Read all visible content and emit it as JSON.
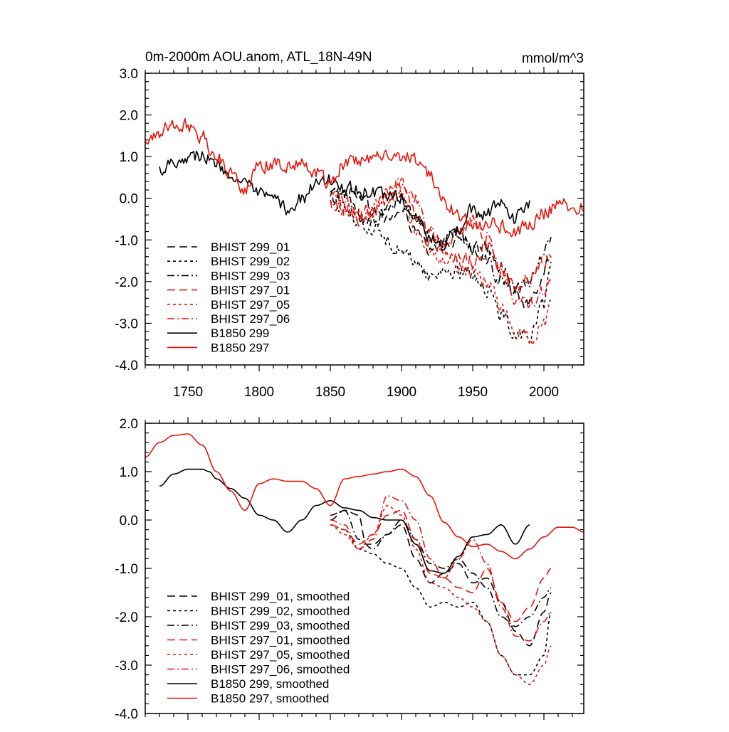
{
  "chart_data": [
    {
      "type": "line",
      "title": "0m-2000m AOU.anom, ATL_18N-49N",
      "units": "mmol/m^3",
      "xlim": [
        1720,
        2028
      ],
      "ylim": [
        -4.0,
        3.0
      ],
      "x_ticks": [
        1750,
        1800,
        1850,
        1900,
        1950,
        2000
      ],
      "x_tick_labels": [
        "1750",
        "1800",
        "1850",
        "1900",
        "1950",
        "2000"
      ],
      "y_ticks": [
        3.0,
        2.0,
        1.0,
        0.0,
        -1.0,
        -2.0,
        -3.0,
        -4.0
      ],
      "y_tick_labels": [
        "3.0",
        "2.0",
        "1.0",
        "0.0",
        "-1.0",
        "-2.0",
        "-3.0",
        "-4.0"
      ],
      "legend_position": "bottom-left",
      "series": [
        {
          "name": "BHIST 299_01",
          "color": "#000000",
          "dash": "long-dash",
          "noise": 0.16,
          "x": [
            1850,
            1860,
            1870,
            1880,
            1890,
            1900,
            1910,
            1920,
            1930,
            1940,
            1950,
            1960,
            1970,
            1980,
            1990,
            2000,
            2005
          ],
          "y": [
            0.0,
            0.2,
            0.1,
            -0.3,
            -0.5,
            -0.3,
            -0.8,
            -1.3,
            -1.1,
            -0.9,
            -1.2,
            -1.2,
            -1.6,
            -2.3,
            -2.6,
            -1.8,
            -1.3
          ]
        },
        {
          "name": "BHIST 299_02",
          "color": "#000000",
          "dash": "short-dash",
          "noise": 0.16,
          "x": [
            1850,
            1860,
            1870,
            1880,
            1890,
            1900,
            1910,
            1920,
            1930,
            1940,
            1950,
            1960,
            1970,
            1980,
            1990,
            2000,
            2005
          ],
          "y": [
            -0.1,
            -0.2,
            -0.6,
            -0.7,
            -1.0,
            -1.3,
            -1.5,
            -1.9,
            -1.7,
            -1.8,
            -1.8,
            -2.2,
            -2.8,
            -3.2,
            -3.3,
            -2.6,
            -1.7
          ]
        },
        {
          "name": "BHIST 299_03",
          "color": "#000000",
          "dash": "dash-dot",
          "noise": 0.16,
          "x": [
            1850,
            1860,
            1870,
            1880,
            1890,
            1900,
            1910,
            1920,
            1930,
            1940,
            1950,
            1960,
            1970,
            1980,
            1990,
            2000,
            2005
          ],
          "y": [
            0.1,
            0.1,
            -0.4,
            -0.6,
            -0.3,
            0.0,
            -0.4,
            -0.9,
            -1.0,
            -0.9,
            -1.2,
            -1.5,
            -2.0,
            -2.2,
            -2.0,
            -1.4,
            -0.9
          ]
        },
        {
          "name": "BHIST 297_01",
          "color": "#e8140c",
          "dash": "long-dash",
          "noise": 0.16,
          "x": [
            1850,
            1860,
            1870,
            1880,
            1890,
            1900,
            1910,
            1920,
            1930,
            1940,
            1950,
            1960,
            1970,
            1980,
            1990,
            2000,
            2005
          ],
          "y": [
            -0.1,
            -0.2,
            -0.4,
            -0.3,
            0.0,
            0.3,
            -0.4,
            -1.1,
            -1.3,
            -1.4,
            -1.5,
            -1.1,
            -1.7,
            -2.1,
            -1.9,
            -1.5,
            -1.3
          ]
        },
        {
          "name": "BHIST 297_05",
          "color": "#e8140c",
          "dash": "short-dash",
          "noise": 0.16,
          "x": [
            1850,
            1860,
            1870,
            1880,
            1890,
            1900,
            1910,
            1920,
            1930,
            1940,
            1950,
            1960,
            1970,
            1980,
            1990,
            2000,
            2005
          ],
          "y": [
            -0.1,
            -0.3,
            -0.5,
            -0.2,
            0.1,
            0.1,
            -0.7,
            -1.4,
            -1.4,
            -1.6,
            -1.7,
            -2.0,
            -2.7,
            -3.2,
            -3.4,
            -3.0,
            -2.6
          ]
        },
        {
          "name": "BHIST 297_06",
          "color": "#e8140c",
          "dash": "dash-dot",
          "noise": 0.16,
          "x": [
            1850,
            1860,
            1870,
            1880,
            1890,
            1900,
            1910,
            1920,
            1930,
            1940,
            1950,
            1960,
            1970,
            1980,
            1990,
            2000,
            2005
          ],
          "y": [
            0.0,
            -0.1,
            -0.5,
            -0.3,
            0.2,
            0.4,
            0.0,
            -0.8,
            -1.2,
            -0.8,
            -0.5,
            -0.9,
            -1.8,
            -2.4,
            -2.5,
            -2.2,
            -1.9
          ]
        },
        {
          "name": "B1850 299",
          "color": "#000000",
          "dash": "solid",
          "noise": 0.15,
          "x": [
            1730,
            1740,
            1750,
            1760,
            1770,
            1780,
            1790,
            1800,
            1810,
            1820,
            1830,
            1840,
            1850,
            1860,
            1870,
            1880,
            1890,
            1900,
            1910,
            1920,
            1930,
            1940,
            1950,
            1960,
            1970,
            1980,
            1990
          ],
          "y": [
            0.7,
            0.9,
            1.0,
            1.05,
            0.8,
            0.6,
            0.3,
            0.1,
            -0.05,
            -0.25,
            0.0,
            0.3,
            0.45,
            0.25,
            0.2,
            0.1,
            0.05,
            0.0,
            -0.5,
            -1.0,
            -1.1,
            -0.7,
            -0.3,
            -0.4,
            -0.1,
            -0.5,
            -0.1
          ]
        },
        {
          "name": "B1850 297",
          "color": "#e8140c",
          "dash": "solid",
          "noise": 0.16,
          "x": [
            1720,
            1730,
            1740,
            1750,
            1760,
            1770,
            1780,
            1790,
            1800,
            1810,
            1820,
            1830,
            1840,
            1850,
            1860,
            1870,
            1880,
            1890,
            1900,
            1910,
            1920,
            1930,
            1940,
            1950,
            1960,
            1970,
            1980,
            1990,
            2000,
            2010,
            2020,
            2028
          ],
          "y": [
            1.3,
            1.6,
            1.75,
            1.75,
            1.5,
            1.0,
            0.6,
            0.25,
            0.75,
            0.85,
            0.8,
            0.8,
            0.65,
            0.3,
            0.85,
            0.9,
            0.95,
            1.0,
            1.05,
            0.9,
            0.5,
            -0.1,
            -0.4,
            -0.6,
            -0.55,
            -0.7,
            -0.8,
            -0.6,
            -0.35,
            -0.15,
            -0.15,
            -0.25
          ]
        }
      ],
      "legend": [
        {
          "label": "BHIST 299_01",
          "color": "#000000",
          "dash": "long-dash"
        },
        {
          "label": "BHIST 299_02",
          "color": "#000000",
          "dash": "short-dash"
        },
        {
          "label": "BHIST 299_03",
          "color": "#000000",
          "dash": "dash-dot"
        },
        {
          "label": "BHIST 297_01",
          "color": "#e8140c",
          "dash": "long-dash"
        },
        {
          "label": "BHIST 297_05",
          "color": "#e8140c",
          "dash": "short-dash"
        },
        {
          "label": "BHIST 297_06",
          "color": "#e8140c",
          "dash": "dash-dot"
        },
        {
          "label": "B1850 299",
          "color": "#000000",
          "dash": "solid"
        },
        {
          "label": "B1850 297",
          "color": "#e8140c",
          "dash": "solid"
        }
      ]
    },
    {
      "type": "line",
      "title": "",
      "units": "",
      "xlim": [
        1720,
        2028
      ],
      "ylim": [
        -4.0,
        2.0
      ],
      "x_ticks": [
        1750,
        1800,
        1850,
        1900,
        1950,
        2000
      ],
      "x_tick_labels": [],
      "y_ticks": [
        2.0,
        1.0,
        0.0,
        -1.0,
        -2.0,
        -3.0,
        -4.0
      ],
      "y_tick_labels": [
        "2.0",
        "1.0",
        "0.0",
        "-1.0",
        "-2.0",
        "-3.0",
        "-4.0"
      ],
      "legend_position": "bottom-left",
      "series": [
        {
          "name": "BHIST 299_01, smoothed",
          "color": "#000000",
          "dash": "long-dash",
          "noise": 0,
          "x": [
            1850,
            1860,
            1870,
            1875,
            1880,
            1890,
            1900,
            1910,
            1920,
            1930,
            1940,
            1950,
            1960,
            1970,
            1980,
            1990,
            2000,
            2005
          ],
          "y": [
            0.0,
            0.2,
            0.1,
            -0.5,
            -0.5,
            -0.3,
            -0.1,
            -0.8,
            -1.3,
            -1.1,
            -0.9,
            -1.3,
            -1.2,
            -1.7,
            -2.3,
            -2.6,
            -1.9,
            -1.5
          ]
        },
        {
          "name": "BHIST 299_02, smoothed",
          "color": "#000000",
          "dash": "short-dash",
          "noise": 0,
          "x": [
            1850,
            1860,
            1870,
            1880,
            1890,
            1900,
            1910,
            1920,
            1930,
            1940,
            1950,
            1960,
            1970,
            1980,
            1990,
            2000,
            2005
          ],
          "y": [
            -0.1,
            -0.2,
            -0.6,
            -0.7,
            -0.9,
            -1.0,
            -1.4,
            -1.8,
            -1.7,
            -1.8,
            -1.7,
            -2.1,
            -2.8,
            -3.2,
            -3.2,
            -2.8,
            -1.9
          ]
        },
        {
          "name": "BHIST 299_03, smoothed",
          "color": "#000000",
          "dash": "dash-dot",
          "noise": 0,
          "x": [
            1850,
            1860,
            1870,
            1880,
            1890,
            1900,
            1910,
            1920,
            1930,
            1940,
            1950,
            1960,
            1970,
            1980,
            1990,
            2000,
            2005
          ],
          "y": [
            0.1,
            0.2,
            -0.4,
            -0.6,
            -0.3,
            0.0,
            -0.4,
            -0.9,
            -1.0,
            -0.8,
            -1.1,
            -1.4,
            -2.0,
            -2.2,
            -2.0,
            -1.6,
            -1.4
          ]
        },
        {
          "name": "BHIST 297_01, smoothed",
          "color": "#e8140c",
          "dash": "long-dash",
          "noise": 0,
          "x": [
            1850,
            1860,
            1870,
            1880,
            1890,
            1900,
            1910,
            1920,
            1930,
            1940,
            1950,
            1960,
            1970,
            1980,
            1990,
            2000,
            2005
          ],
          "y": [
            -0.1,
            -0.2,
            -0.5,
            -0.3,
            0.1,
            0.2,
            -0.4,
            -1.1,
            -1.2,
            -1.4,
            -1.5,
            -1.0,
            -1.7,
            -2.1,
            -1.8,
            -1.2,
            -1.0
          ]
        },
        {
          "name": "BHIST 297_05, smoothed",
          "color": "#e8140c",
          "dash": "short-dash",
          "noise": 0,
          "x": [
            1850,
            1860,
            1870,
            1880,
            1890,
            1900,
            1910,
            1920,
            1930,
            1940,
            1950,
            1960,
            1970,
            1980,
            1990,
            2000,
            2005
          ],
          "y": [
            -0.1,
            -0.3,
            -0.6,
            -0.3,
            0.3,
            0.1,
            -0.6,
            -1.3,
            -1.4,
            -1.6,
            -1.8,
            -2.1,
            -2.8,
            -3.2,
            -3.4,
            -3.0,
            -2.6
          ]
        },
        {
          "name": "BHIST 297_06, smoothed",
          "color": "#e8140c",
          "dash": "dash-dot",
          "noise": 0,
          "x": [
            1850,
            1860,
            1870,
            1880,
            1890,
            1900,
            1910,
            1920,
            1930,
            1940,
            1950,
            1960,
            1970,
            1980,
            1990,
            2000,
            2005
          ],
          "y": [
            0.0,
            -0.1,
            -0.6,
            -0.4,
            0.5,
            0.4,
            0.0,
            -0.8,
            -1.2,
            -0.8,
            -0.4,
            -0.9,
            -1.8,
            -2.4,
            -2.5,
            -2.1,
            -1.9
          ]
        },
        {
          "name": "B1850 299, smoothed",
          "color": "#000000",
          "dash": "solid",
          "noise": 0,
          "x": [
            1730,
            1740,
            1750,
            1760,
            1765,
            1770,
            1780,
            1790,
            1800,
            1810,
            1820,
            1830,
            1840,
            1850,
            1860,
            1870,
            1880,
            1890,
            1900,
            1910,
            1920,
            1930,
            1940,
            1950,
            1960,
            1970,
            1980,
            1990
          ],
          "y": [
            0.7,
            0.95,
            1.05,
            1.05,
            1.0,
            0.85,
            0.65,
            0.45,
            0.1,
            0.0,
            -0.25,
            0.0,
            0.3,
            0.4,
            0.25,
            0.2,
            0.05,
            0.0,
            0.0,
            -0.5,
            -1.05,
            -1.1,
            -0.75,
            -0.35,
            -0.3,
            -0.1,
            -0.5,
            -0.1
          ]
        },
        {
          "name": "B1850 297, smoothed",
          "color": "#e8140c",
          "dash": "solid",
          "noise": 0,
          "x": [
            1720,
            1730,
            1740,
            1750,
            1760,
            1770,
            1780,
            1790,
            1800,
            1810,
            1820,
            1830,
            1840,
            1850,
            1860,
            1870,
            1880,
            1890,
            1900,
            1910,
            1920,
            1930,
            1940,
            1950,
            1960,
            1970,
            1980,
            1990,
            2000,
            2010,
            2020,
            2028
          ],
          "y": [
            1.3,
            1.6,
            1.75,
            1.78,
            1.55,
            1.0,
            0.6,
            0.2,
            0.75,
            0.85,
            0.8,
            0.8,
            0.65,
            0.3,
            0.85,
            0.9,
            0.95,
            1.0,
            1.05,
            0.9,
            0.5,
            -0.05,
            -0.35,
            -0.55,
            -0.5,
            -0.65,
            -0.8,
            -0.6,
            -0.35,
            -0.15,
            -0.15,
            -0.25
          ]
        }
      ],
      "legend": [
        {
          "label": "BHIST 299_01, smoothed",
          "color": "#000000",
          "dash": "long-dash"
        },
        {
          "label": "BHIST 299_02, smoothed",
          "color": "#000000",
          "dash": "short-dash"
        },
        {
          "label": "BHIST 299_03, smoothed",
          "color": "#000000",
          "dash": "dash-dot"
        },
        {
          "label": "BHIST 297_01, smoothed",
          "color": "#e8140c",
          "dash": "long-dash"
        },
        {
          "label": "BHIST 297_05, smoothed",
          "color": "#e8140c",
          "dash": "short-dash"
        },
        {
          "label": "BHIST 297_06, smoothed",
          "color": "#e8140c",
          "dash": "dash-dot"
        },
        {
          "label": "B1850 299, smoothed",
          "color": "#000000",
          "dash": "solid"
        },
        {
          "label": "B1850 297, smoothed",
          "color": "#e8140c",
          "dash": "solid"
        }
      ]
    }
  ]
}
